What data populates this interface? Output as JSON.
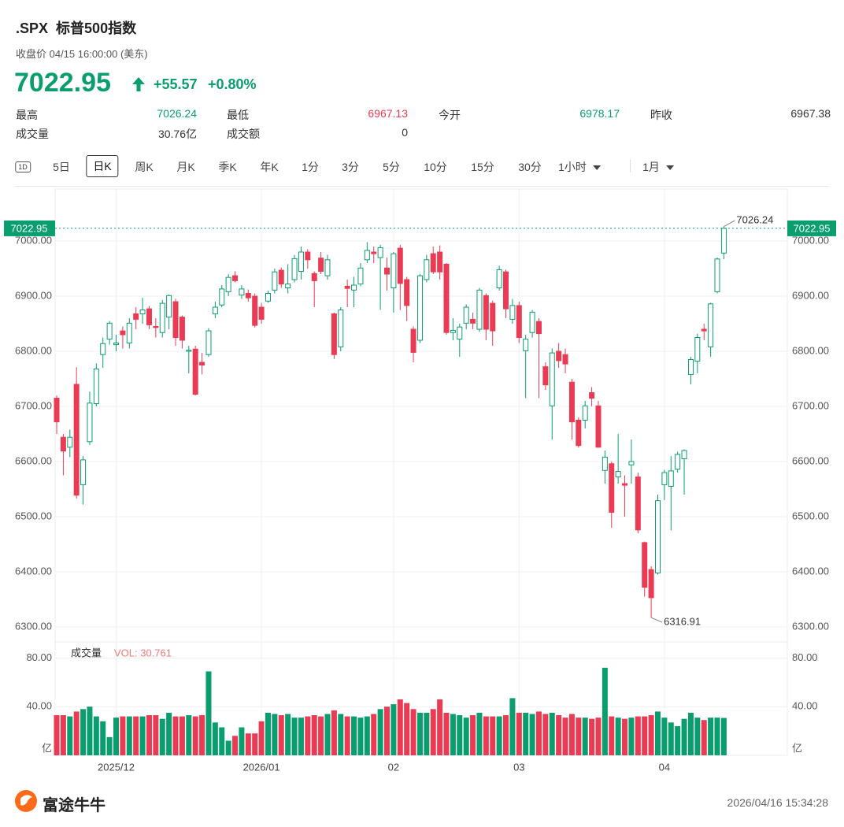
{
  "header": {
    "symbol": ".SPX",
    "name": "标普500指数",
    "time_label": "收盘价 04/15 16:00:00 (美东)",
    "price": "7022.95",
    "change": "+55.57",
    "change_pct": "+0.80%"
  },
  "stats": [
    {
      "label": "最高",
      "value": "7026.24",
      "tone": "up"
    },
    {
      "label": "最低",
      "value": "6967.13",
      "tone": "down"
    },
    {
      "label": "今开",
      "value": "6978.17",
      "tone": "up"
    },
    {
      "label": "昨收",
      "value": "6967.38",
      "tone": "flat"
    },
    {
      "label": "成交量",
      "value": "30.76亿",
      "tone": "flat"
    },
    {
      "label": "成交额",
      "value": "0",
      "tone": "flat"
    }
  ],
  "tabs": [
    "1D",
    "5日",
    "日K",
    "周K",
    "月K",
    "季K",
    "年K",
    "1分",
    "3分",
    "5分",
    "10分",
    "15分",
    "30分",
    "1小时",
    "1月"
  ],
  "selected_tab": "日K",
  "dropdown_tabs": [
    "1小时",
    "1月"
  ],
  "chart_data": {
    "type": "candlestick",
    "up_color": "#0a9e6f",
    "down_color": "#ea3b54",
    "ylim": [
      6280,
      7080
    ],
    "yticks": [
      {
        "value": 6300,
        "label": "6300.00"
      },
      {
        "value": 6400,
        "label": "6400.00"
      },
      {
        "value": 6500,
        "label": "6500.00"
      },
      {
        "value": 6600,
        "label": "6600.00"
      },
      {
        "value": 6700,
        "label": "6700.00"
      },
      {
        "value": 6800,
        "label": "6800.00"
      },
      {
        "value": 6900,
        "label": "6900.00"
      },
      {
        "value": 7000,
        "label": "7000.00"
      }
    ],
    "last_price": 7022.95,
    "grid": true,
    "categories": [
      null,
      null,
      null,
      null,
      null,
      null,
      null,
      null,
      null,
      "2025/12",
      null,
      null,
      null,
      null,
      null,
      null,
      null,
      null,
      null,
      null,
      null,
      null,
      null,
      null,
      null,
      null,
      null,
      null,
      null,
      null,
      null,
      "2026/01",
      null,
      null,
      null,
      null,
      null,
      null,
      null,
      null,
      null,
      null,
      null,
      null,
      null,
      null,
      null,
      null,
      null,
      null,
      null,
      "02",
      null,
      null,
      null,
      null,
      null,
      null,
      null,
      null,
      null,
      null,
      null,
      null,
      null,
      null,
      null,
      null,
      null,
      null,
      "03",
      null,
      null,
      null,
      null,
      null,
      null,
      null,
      null,
      null,
      null,
      null,
      null,
      null,
      null,
      null,
      null,
      null,
      null,
      null,
      null,
      null,
      "04",
      null,
      null,
      null,
      null,
      null,
      null,
      null,
      null,
      null
    ],
    "open": [
      6715,
      6644,
      6626,
      6740,
      6558,
      6636,
      6705,
      6794,
      6822,
      6812,
      6837,
      6815,
      6868,
      6868,
      6877,
      6845,
      6834,
      6862,
      6890,
      6862,
      6800,
      6804,
      6780,
      6794,
      6868,
      6884,
      6908,
      6937,
      6902,
      6905,
      6900,
      6880,
      6891,
      6911,
      6947,
      6915,
      6930,
      6945,
      6980,
      6941,
      6969,
      6937,
      6868,
      6808,
      6918,
      6911,
      6922,
      6966,
      6980,
      6970,
      6951,
      6915,
      6987,
      6930,
      6840,
      6820,
      6930,
      6977,
      6980,
      6958,
      6834,
      6822,
      6851,
      6858,
      6840,
      6901,
      6887,
      6915,
      6944,
      6858,
      6883,
      6801,
      6834,
      6854,
      6772,
      6701,
      6800,
      6794,
      6744,
      6675,
      6675,
      6725,
      6701,
      6584,
      6596,
      6572,
      6560,
      6594,
      6572,
      6453,
      6404,
      6398,
      6558,
      6555,
      6586,
      6605,
      6758,
      6782,
      6840,
      6808,
      6908,
      6978.17
    ],
    "high": [
      6720,
      6650,
      6658,
      6771,
      6610,
      6727,
      6778,
      6825,
      6855,
      6830,
      6845,
      6860,
      6880,
      6897,
      6882,
      6860,
      6893,
      6903,
      6895,
      6865,
      6810,
      6810,
      6797,
      6842,
      6890,
      6920,
      6940,
      6945,
      6920,
      6912,
      6905,
      6888,
      6910,
      6950,
      6952,
      6958,
      6975,
      6990,
      6985,
      6945,
      6980,
      6975,
      6870,
      6880,
      6930,
      6935,
      6960,
      6998,
      6990,
      6993,
      6970,
      6980,
      6993,
      6935,
      6845,
      6940,
      6975,
      6990,
      6992,
      6960,
      6860,
      6850,
      6885,
      6870,
      6915,
      6905,
      6892,
      6955,
      6948,
      6895,
      6890,
      6830,
      6875,
      6860,
      6780,
      6805,
      6815,
      6805,
      6750,
      6680,
      6710,
      6735,
      6710,
      6620,
      6600,
      6650,
      6575,
      6640,
      6580,
      6455,
      6410,
      6540,
      6585,
      6610,
      6618,
      6622,
      6790,
      6832,
      6850,
      6888,
      6970,
      7026.24
    ],
    "low": [
      6650,
      6575,
      6608,
      6533,
      6522,
      6630,
      6700,
      6770,
      6812,
      6800,
      6805,
      6805,
      6840,
      6850,
      6840,
      6825,
      6825,
      6840,
      6810,
      6805,
      6760,
      6720,
      6758,
      6790,
      6860,
      6880,
      6900,
      6925,
      6895,
      6890,
      6843,
      6850,
      6888,
      6905,
      6915,
      6905,
      6925,
      6930,
      6950,
      6880,
      6940,
      6930,
      6786,
      6800,
      6880,
      6880,
      6918,
      6960,
      6960,
      6875,
      6910,
      6870,
      6875,
      6855,
      6780,
      6815,
      6925,
      6940,
      6930,
      6830,
      6820,
      6790,
      6840,
      6840,
      6835,
      6820,
      6810,
      6910,
      6860,
      6850,
      6815,
      6715,
      6825,
      6715,
      6730,
      6640,
      6770,
      6760,
      6640,
      6625,
      6660,
      6700,
      6625,
      6560,
      6480,
      6560,
      6500,
      6560,
      6470,
      6355,
      6316.91,
      6395,
      6530,
      6475,
      6580,
      6540,
      6740,
      6760,
      6820,
      6790,
      6905,
      6967.13
    ],
    "close": [
      6672,
      6619,
      6644,
      6539,
      6603,
      6706,
      6768,
      6814,
      6851,
      6815,
      6830,
      6851,
      6858,
      6875,
      6848,
      6843,
      6887,
      6901,
      6825,
      6820,
      6802,
      6722,
      6775,
      6837,
      6880,
      6913,
      6934,
      6928,
      6913,
      6897,
      6847,
      6858,
      6905,
      6944,
      6922,
      6922,
      6968,
      6980,
      6966,
      6928,
      6945,
      6966,
      6794,
      6875,
      6914,
      6920,
      6951,
      6983,
      6977,
      6988,
      6940,
      6977,
      6923,
      6883,
      6798,
      6937,
      6966,
      6944,
      6944,
      6834,
      6838,
      6844,
      6880,
      6851,
      6911,
      6840,
      6837,
      6948,
      6877,
      6883,
      6825,
      6822,
      6871,
      6832,
      6739,
      6797,
      6783,
      6777,
      6672,
      6629,
      6701,
      6715,
      6626,
      6608,
      6508,
      6582,
      6557,
      6600,
      6476,
      6372,
      6353,
      6529,
      6580,
      6583,
      6613,
      6620,
      6785,
      6825,
      6837,
      6886,
      6967.38,
      7022.95
    ],
    "volume": [
      33,
      33,
      32,
      36,
      38,
      40,
      32,
      28,
      15,
      31,
      32,
      32,
      32,
      32,
      33,
      33,
      30,
      35,
      32,
      32,
      33,
      32,
      33,
      69,
      27,
      23,
      12,
      16,
      23,
      18,
      18,
      28,
      35,
      34,
      33,
      34,
      31,
      31,
      32,
      33,
      32,
      34,
      37,
      34,
      32,
      32,
      31,
      32,
      34,
      38,
      40,
      42,
      46,
      43,
      38,
      35,
      35,
      38,
      46,
      35,
      34,
      33,
      31,
      33,
      35,
      32,
      32,
      32,
      33,
      47,
      35,
      35,
      34,
      36,
      34,
      35,
      33,
      31,
      34,
      31,
      31,
      30,
      31,
      72,
      32,
      31,
      30,
      31,
      32,
      32,
      33,
      36,
      31,
      27,
      24,
      30,
      35,
      31,
      29,
      31,
      31,
      30.761
    ],
    "volume_title": "成交量",
    "volume_label": "VOL: 30.761",
    "vlim": [
      0,
      90
    ],
    "vticks": [
      {
        "value": 40,
        "label": "40.00"
      },
      {
        "value": 80,
        "label": "80.00"
      }
    ],
    "volume_unit": "亿"
  },
  "footer": {
    "brand": "富途牛牛",
    "timestamp": "2026/04/16 15:34:28"
  }
}
